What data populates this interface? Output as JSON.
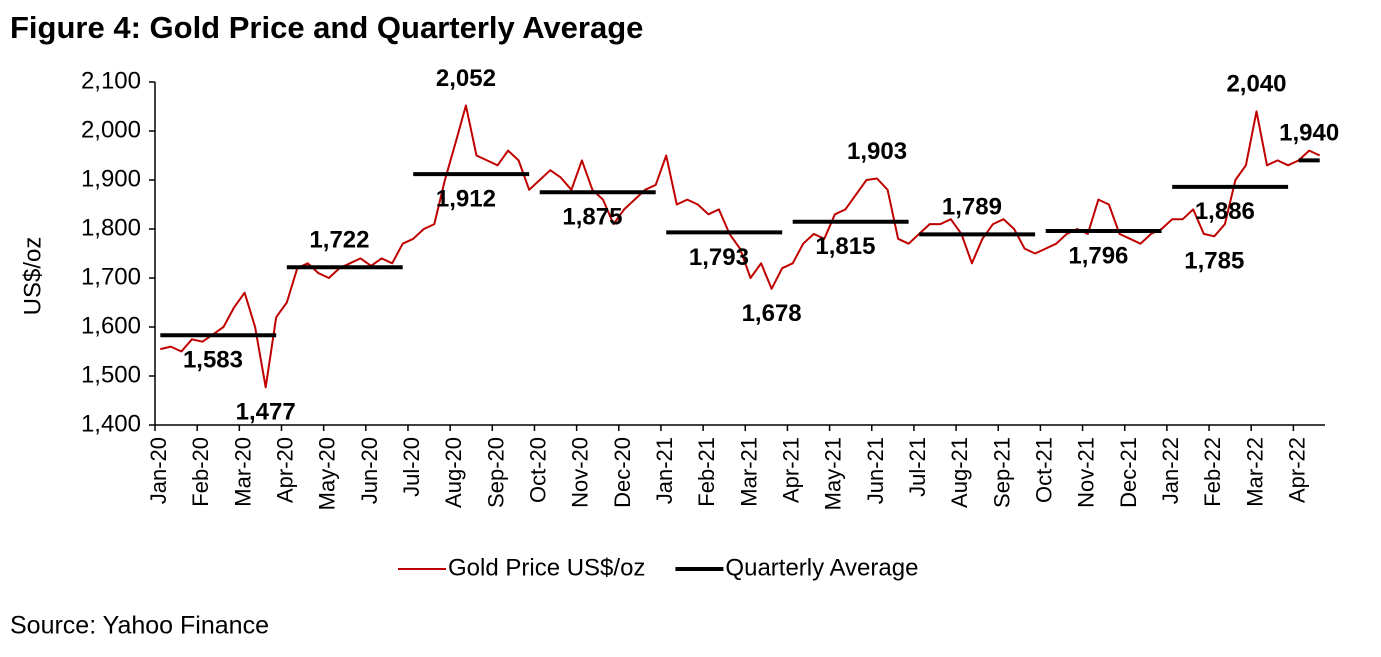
{
  "chart_data": {
    "type": "line",
    "title": "Figure 4: Gold Price and Quarterly Average",
    "ylabel": "US$/oz",
    "source": "Source: Yahoo Finance",
    "categories": [
      "Jan-20",
      null,
      null,
      null,
      "Feb-20",
      null,
      null,
      null,
      "Mar-20",
      null,
      null,
      null,
      "Apr-20",
      null,
      null,
      null,
      "May-20",
      null,
      null,
      null,
      "Jun-20",
      null,
      null,
      null,
      "Jul-20",
      null,
      null,
      null,
      "Aug-20",
      null,
      null,
      null,
      "Sep-20",
      null,
      null,
      null,
      "Oct-20",
      null,
      null,
      null,
      "Nov-20",
      null,
      null,
      null,
      "Dec-20",
      null,
      null,
      null,
      "Jan-21",
      null,
      null,
      null,
      "Feb-21",
      null,
      null,
      null,
      "Mar-21",
      null,
      null,
      null,
      "Apr-21",
      null,
      null,
      null,
      "May-21",
      null,
      null,
      null,
      "Jun-21",
      null,
      null,
      null,
      "Jul-21",
      null,
      null,
      null,
      "Aug-21",
      null,
      null,
      null,
      "Sep-21",
      null,
      null,
      null,
      "Oct-21",
      null,
      null,
      null,
      "Nov-21",
      null,
      null,
      null,
      "Dec-21",
      null,
      null,
      null,
      "Jan-22",
      null,
      null,
      null,
      "Feb-22",
      null,
      null,
      null,
      "Mar-22",
      null,
      null,
      null,
      "Apr-22",
      null,
      null
    ],
    "series": [
      {
        "name": "Gold Price US$/oz",
        "color": "#c00000",
        "values": [
          1555,
          1560,
          1550,
          1575,
          1570,
          1585,
          1600,
          1640,
          1670,
          1600,
          1477,
          1620,
          1650,
          1720,
          1730,
          1710,
          1700,
          1720,
          1730,
          1740,
          1725,
          1740,
          1730,
          1770,
          1780,
          1800,
          1810,
          1900,
          1975,
          2052,
          1950,
          1940,
          1930,
          1960,
          1940,
          1880,
          1900,
          1920,
          1905,
          1880,
          1940,
          1880,
          1860,
          1810,
          1840,
          1860,
          1880,
          1890,
          1950,
          1850,
          1860,
          1850,
          1830,
          1840,
          1790,
          1760,
          1700,
          1730,
          1678,
          1720,
          1730,
          1770,
          1790,
          1780,
          1830,
          1840,
          1870,
          1900,
          1903,
          1880,
          1780,
          1770,
          1790,
          1810,
          1810,
          1820,
          1790,
          1730,
          1780,
          1810,
          1820,
          1800,
          1760,
          1750,
          1760,
          1770,
          1790,
          1800,
          1790,
          1860,
          1850,
          1790,
          1780,
          1770,
          1790,
          1800,
          1820,
          1820,
          1840,
          1790,
          1785,
          1810,
          1900,
          1930,
          2040,
          1930,
          1940,
          1930,
          1940,
          1960,
          1950
        ],
        "value_labels": [
          null,
          null,
          null,
          null,
          null,
          null,
          null,
          null,
          null,
          null,
          "1,477",
          null,
          null,
          null,
          null,
          null,
          null,
          null,
          null,
          null,
          null,
          null,
          null,
          null,
          null,
          null,
          null,
          null,
          null,
          "2,052",
          null,
          null,
          null,
          null,
          null,
          null,
          null,
          null,
          null,
          null,
          null,
          null,
          null,
          null,
          null,
          null,
          null,
          null,
          null,
          null,
          null,
          null,
          null,
          null,
          null,
          null,
          null,
          null,
          "1,678",
          null,
          null,
          null,
          null,
          null,
          null,
          null,
          null,
          null,
          "1,903",
          null,
          null,
          null,
          null,
          null,
          null,
          null,
          null,
          null,
          null,
          null,
          null,
          null,
          null,
          null,
          null,
          null,
          null,
          null,
          null,
          null,
          null,
          null,
          null,
          null,
          null,
          null,
          null,
          null,
          null,
          null,
          "1,785",
          null,
          null,
          null,
          "2,040",
          null,
          null,
          null,
          null,
          null,
          null
        ]
      },
      {
        "name": "Quarterly Average",
        "color": "#000000",
        "values": [
          1583,
          1583,
          1583,
          1583,
          1583,
          1583,
          1583,
          1583,
          1583,
          1583,
          1583,
          1583,
          1722,
          1722,
          1722,
          1722,
          1722,
          1722,
          1722,
          1722,
          1722,
          1722,
          1722,
          1722,
          1912,
          1912,
          1912,
          1912,
          1912,
          1912,
          1912,
          1912,
          1912,
          1912,
          1912,
          1912,
          1875,
          1875,
          1875,
          1875,
          1875,
          1875,
          1875,
          1875,
          1875,
          1875,
          1875,
          1875,
          1793,
          1793,
          1793,
          1793,
          1793,
          1793,
          1793,
          1793,
          1793,
          1793,
          1793,
          1793,
          1815,
          1815,
          1815,
          1815,
          1815,
          1815,
          1815,
          1815,
          1815,
          1815,
          1815,
          1815,
          1789,
          1789,
          1789,
          1789,
          1789,
          1789,
          1789,
          1789,
          1789,
          1789,
          1789,
          1789,
          1796,
          1796,
          1796,
          1796,
          1796,
          1796,
          1796,
          1796,
          1796,
          1796,
          1796,
          1796,
          1886,
          1886,
          1886,
          1886,
          1886,
          1886,
          1886,
          1886,
          1886,
          1886,
          1886,
          1886,
          1940,
          1940,
          1940
        ],
        "value_labels": [
          null,
          null,
          null,
          null,
          null,
          "1,583",
          null,
          null,
          null,
          null,
          null,
          null,
          null,
          null,
          null,
          null,
          null,
          "1,722",
          null,
          null,
          null,
          null,
          null,
          null,
          null,
          null,
          null,
          null,
          null,
          "1,912",
          null,
          null,
          null,
          null,
          null,
          null,
          null,
          null,
          null,
          null,
          null,
          "1,875",
          null,
          null,
          null,
          null,
          null,
          null,
          null,
          null,
          null,
          null,
          null,
          "1,793",
          null,
          null,
          null,
          null,
          null,
          null,
          null,
          null,
          null,
          null,
          null,
          "1,815",
          null,
          null,
          null,
          null,
          null,
          null,
          null,
          null,
          null,
          null,
          null,
          "1,789",
          null,
          null,
          null,
          null,
          null,
          null,
          null,
          null,
          null,
          null,
          null,
          "1,796",
          null,
          null,
          null,
          null,
          null,
          null,
          null,
          null,
          null,
          null,
          null,
          "1,886",
          null,
          null,
          null,
          null,
          null,
          null,
          null,
          "1,940",
          null
        ]
      }
    ],
    "ylim": [
      1400,
      2100
    ],
    "yticks": [
      {
        "value": 1400,
        "label": "1,400"
      },
      {
        "value": 1500,
        "label": "1,500"
      },
      {
        "value": 1600,
        "label": "1,600"
      },
      {
        "value": 1700,
        "label": "1,700"
      },
      {
        "value": 1800,
        "label": "1,800"
      },
      {
        "value": 1900,
        "label": "1,900"
      },
      {
        "value": 2000,
        "label": "2,000"
      },
      {
        "value": 2100,
        "label": "2,100"
      }
    ],
    "grid": false,
    "legend": "bottom"
  }
}
